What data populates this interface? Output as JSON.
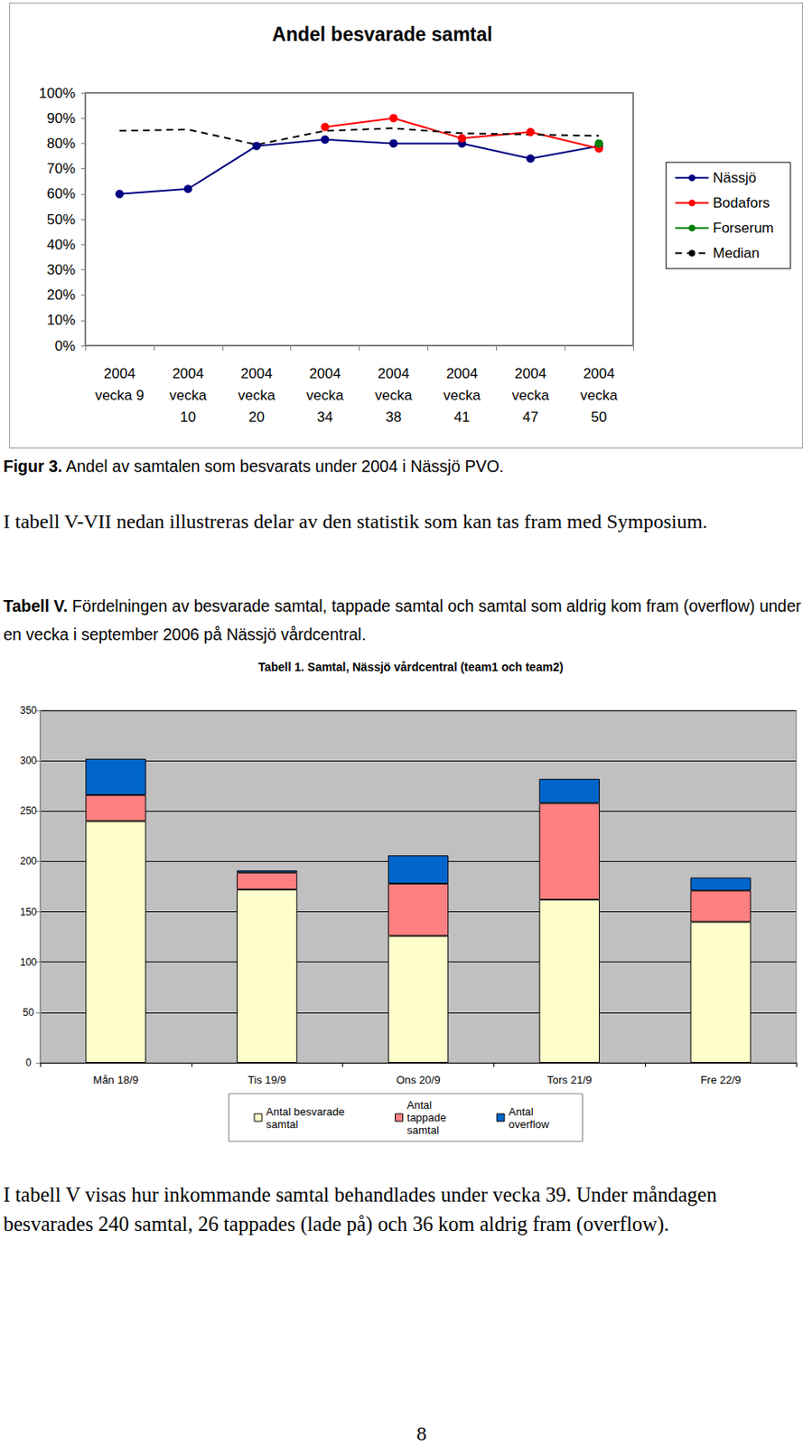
{
  "texts": {
    "figure_caption": {
      "label": "Figur 3.",
      "text": "Andel av samtalen som besvarats under 2004 i Nässjö PVO."
    },
    "paragraph_1": "I tabell V-VII nedan illustreras delar av den statistik som kan tas fram med Symposium.",
    "table_caption": {
      "label": "Tabell V.",
      "text": "Fördelningen av besvarade samtal, tappade samtal och samtal som aldrig kom fram (overflow) under en vecka i september 2006 på Nässjö vårdcentral."
    },
    "paragraph_2": "I tabell V visas hur inkommande samtal behandlades under vecka 39. Under måndagen besvarades 240 samtal, 26 tappades (lade på) och 36 kom aldrig fram (overflow).",
    "page_number": "8"
  },
  "chart_data": [
    {
      "type": "line",
      "title": "Andel besvarade samtal",
      "categories": [
        "2004\nvecka 9",
        "2004\nvecka\n10",
        "2004\nvecka\n20",
        "2004\nvecka\n34",
        "2004\nvecka\n38",
        "2004\nvecka\n41",
        "2004\nvecka\n47",
        "2004\nvecka\n50"
      ],
      "series": [
        {
          "name": "Nässjö",
          "color": "#000080",
          "marker": "circle",
          "line_style": "solid",
          "values": [
            60,
            62,
            79,
            81.5,
            80,
            80,
            74,
            79
          ]
        },
        {
          "name": "Bodafors",
          "color": "#ff0000",
          "marker": "circle",
          "line_style": "solid",
          "values": [
            null,
            null,
            null,
            86.5,
            90,
            82,
            84.5,
            78
          ]
        },
        {
          "name": "Forserum",
          "color": "#008000",
          "marker": "circle",
          "line_style": "solid",
          "values": [
            null,
            null,
            null,
            null,
            null,
            null,
            null,
            80
          ]
        },
        {
          "name": "Median",
          "color": "#000000",
          "marker": "none",
          "line_style": "dashed",
          "values": [
            85,
            85.5,
            79.5,
            85,
            86,
            84,
            83.5,
            83
          ]
        }
      ],
      "ylim": [
        0,
        100
      ],
      "yticks": [
        {
          "value": 0,
          "label": "0%"
        },
        {
          "value": 10,
          "label": "10%"
        },
        {
          "value": 20,
          "label": "20%"
        },
        {
          "value": 30,
          "label": "30%"
        },
        {
          "value": 40,
          "label": "40%"
        },
        {
          "value": 50,
          "label": "50%"
        },
        {
          "value": 60,
          "label": "60%"
        },
        {
          "value": 70,
          "label": "70%"
        },
        {
          "value": 80,
          "label": "80%"
        },
        {
          "value": 90,
          "label": "90%"
        },
        {
          "value": 100,
          "label": "100%"
        }
      ],
      "grid": false,
      "legend": "right"
    },
    {
      "type": "bar",
      "stacked": true,
      "title": "Tabell 1. Samtal, Nässjö vårdcentral (team1 och team2)",
      "categories": [
        "Mån 18/9",
        "Tis 19/9",
        "Ons 20/9",
        "Tors 21/9",
        "Fre 22/9"
      ],
      "series": [
        {
          "name": "Antal besvarade\nsamtal",
          "color": "#ffffcc",
          "values": [
            240,
            172,
            126,
            162,
            140
          ]
        },
        {
          "name": "Antal\ntappade\nsamtal",
          "color": "#ff8080",
          "values": [
            26,
            17,
            52,
            96,
            31
          ]
        },
        {
          "name": "Antal\noverflow",
          "color": "#0066cc",
          "values": [
            36,
            2,
            28,
            24,
            13
          ]
        }
      ],
      "ylim": [
        0,
        350
      ],
      "yticks": [
        0,
        50,
        100,
        150,
        200,
        250,
        300,
        350
      ],
      "grid": true,
      "legend": "bottom"
    }
  ]
}
